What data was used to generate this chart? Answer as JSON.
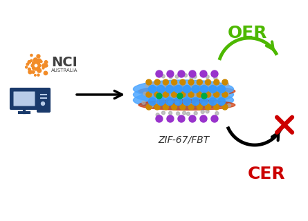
{
  "bg_color": "#ffffff",
  "title": "",
  "oer_label": "OER",
  "cer_label": "CER",
  "structure_label": "ZIF-67/FBT",
  "oer_color": "#4db800",
  "cer_color": "#cc0000",
  "arrow_color": "#000000",
  "nci_orange": "#f28c28",
  "nci_text_color": "#404040",
  "computer_color": "#1a3a6b",
  "nci_label": "NCI",
  "nci_sub": "AUSTRALIA"
}
